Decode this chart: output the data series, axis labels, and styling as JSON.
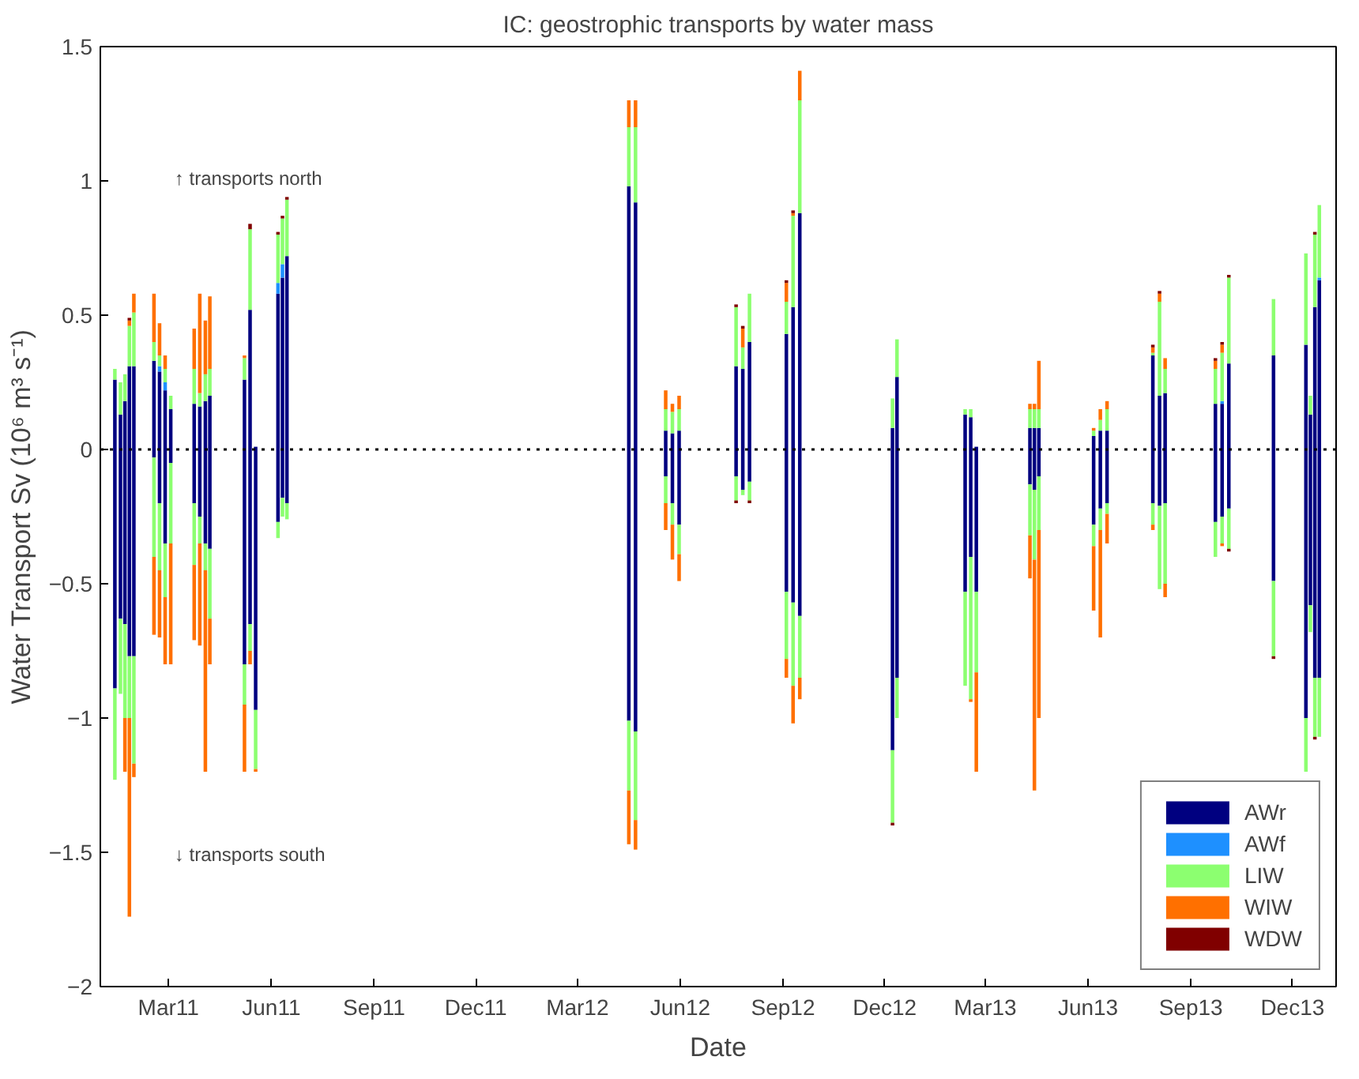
{
  "chart_data": {
    "type": "bar",
    "stacked": true,
    "title": "IC: geostrophic transports by water mass",
    "xlabel": "Date",
    "ylabel": "Water Transport Sv (10⁶ m³ s⁻¹)",
    "annotations": [
      "↑ transports north",
      "↓ transports south"
    ],
    "x": [
      "2011-01-12",
      "2011-01-17",
      "2011-01-21",
      "2011-01-25",
      "2011-01-29",
      "2011-02-16",
      "2011-02-21",
      "2011-02-26",
      "2011-03-03",
      "2011-03-24",
      "2011-03-29",
      "2011-04-03",
      "2011-04-07",
      "2011-05-08",
      "2011-05-13",
      "2011-05-18",
      "2011-06-07",
      "2011-06-11",
      "2011-06-15",
      "2012-04-16",
      "2012-04-22",
      "2012-05-19",
      "2012-05-25",
      "2012-05-31",
      "2012-07-21",
      "2012-07-27",
      "2012-08-02",
      "2012-09-04",
      "2012-09-10",
      "2012-09-16",
      "2012-12-08",
      "2012-12-12",
      "2013-02-11",
      "2013-02-16",
      "2013-02-21",
      "2013-04-10",
      "2013-04-14",
      "2013-04-18",
      "2013-06-06",
      "2013-06-12",
      "2013-06-18",
      "2013-07-29",
      "2013-08-04",
      "2013-08-09",
      "2013-09-23",
      "2013-09-29",
      "2013-10-05",
      "2013-11-14",
      "2013-12-13",
      "2013-12-17",
      "2013-12-21",
      "2013-12-25"
    ],
    "series": [
      {
        "name": "AWr",
        "color": "#000080",
        "values": [
          0.26,
          0.13,
          0.18,
          0.31,
          0.31,
          0.33,
          0.29,
          0.22,
          0.15,
          0.17,
          0.16,
          0.18,
          0.2,
          0.26,
          0.52,
          0.01,
          0.58,
          0.64,
          0.72,
          0.98,
          0.92,
          0.07,
          0.06,
          0.07,
          0.31,
          0.3,
          0.4,
          0.43,
          0.53,
          0.88,
          0.08,
          0.27,
          0.13,
          0.12,
          0.01,
          0.08,
          0.08,
          0.08,
          0.05,
          0.07,
          0.07,
          0.35,
          0.2,
          0.21,
          0.17,
          0.17,
          0.32,
          0.35,
          0.39,
          0.13,
          0.53,
          0.63
        ]
      },
      {
        "name": "AWf",
        "color": "#1e90ff",
        "values": [
          0,
          0,
          0,
          0,
          0,
          0,
          0.02,
          0.03,
          0,
          0,
          0,
          0,
          0,
          0,
          0,
          0,
          0.04,
          0.05,
          0,
          0,
          0,
          0,
          0,
          0,
          0,
          0,
          0,
          0,
          0,
          0,
          0,
          0,
          0,
          0,
          0,
          0,
          0,
          0,
          0,
          0,
          0,
          0,
          0,
          0,
          0,
          0.01,
          0,
          0,
          0,
          0,
          0,
          0.01
        ]
      },
      {
        "name": "LIW",
        "color": "#8cff70",
        "values": [
          0.04,
          0.12,
          0.1,
          0.15,
          0.2,
          0.07,
          0.04,
          0.05,
          0.05,
          0.13,
          0.05,
          0.1,
          0.1,
          0.08,
          0.3,
          0,
          0.18,
          0.17,
          0.21,
          0.22,
          0.28,
          0.08,
          0.08,
          0.08,
          0.22,
          0.08,
          0.18,
          0.12,
          0.34,
          0.42,
          0.11,
          0.14,
          0.02,
          0.03,
          0,
          0.07,
          0.07,
          0.07,
          0.02,
          0.04,
          0.08,
          0.01,
          0.35,
          0.09,
          0.13,
          0.18,
          0.32,
          0.21,
          0.34,
          0.07,
          0.27,
          0.27
        ]
      },
      {
        "name": "WIW",
        "color": "#ff7000",
        "values": [
          0,
          0,
          0,
          0.02,
          0.07,
          0.18,
          0.12,
          0.05,
          0,
          0.15,
          0.37,
          0.2,
          0.27,
          0.01,
          0,
          0,
          0,
          0,
          0,
          0.1,
          0.1,
          0.07,
          0.03,
          0.05,
          0,
          0.07,
          0,
          0.07,
          0.01,
          0.11,
          0,
          0,
          0,
          0,
          0,
          0.02,
          0.02,
          0.18,
          0.01,
          0.04,
          0.03,
          0.02,
          0.03,
          0.04,
          0.03,
          0.03,
          0,
          0,
          0,
          0,
          0,
          0
        ]
      },
      {
        "name": "WDW",
        "color": "#800000",
        "values": [
          0,
          0,
          0,
          0.01,
          0,
          0,
          0,
          0,
          0,
          0,
          0,
          0,
          0,
          0,
          0.02,
          0,
          0.01,
          0.01,
          0.01,
          0,
          0,
          0,
          0,
          0,
          0.01,
          0.01,
          0,
          0.01,
          0.01,
          0,
          0,
          0,
          0,
          0,
          0,
          0,
          0,
          0,
          0,
          0,
          0,
          0.01,
          0.01,
          0,
          0.01,
          0.01,
          0.01,
          0,
          0,
          0,
          0.01,
          0
        ]
      },
      {
        "color": "#000080",
        "values": [
          -0.89,
          -0.63,
          -0.65,
          -0.77,
          -0.77,
          -0.03,
          -0.2,
          -0.35,
          -0.05,
          -0.2,
          -0.25,
          -0.35,
          -0.37,
          -0.8,
          -0.65,
          -0.97,
          -0.27,
          -0.18,
          -0.2,
          -1.01,
          -1.05,
          -0.1,
          -0.2,
          -0.28,
          -0.1,
          -0.15,
          -0.12,
          -0.53,
          -0.57,
          -0.62,
          -1.12,
          -0.85,
          -0.53,
          -0.4,
          -0.53,
          -0.13,
          -0.15,
          -0.1,
          -0.28,
          -0.22,
          -0.2,
          -0.2,
          -0.21,
          -0.2,
          -0.27,
          -0.25,
          -0.22,
          -0.49,
          -1.0,
          -0.58,
          -0.85,
          -0.85
        ]
      },
      {
        "color": "#8cff70",
        "values": [
          -0.34,
          -0.28,
          -0.35,
          -0.23,
          -0.4,
          -0.37,
          -0.25,
          -0.2,
          -0.3,
          -0.23,
          -0.1,
          -0.1,
          -0.26,
          -0.15,
          -0.1,
          -0.22,
          -0.06,
          -0.07,
          -0.06,
          -0.26,
          -0.33,
          -0.1,
          -0.08,
          -0.11,
          -0.09,
          -0.02,
          -0.07,
          -0.25,
          -0.31,
          -0.23,
          -0.27,
          -0.15,
          -0.35,
          -0.53,
          -0.3,
          -0.19,
          -0.26,
          -0.2,
          -0.08,
          -0.08,
          -0.04,
          -0.08,
          -0.31,
          -0.3,
          -0.13,
          -0.1,
          -0.15,
          -0.28,
          -0.2,
          -0.1,
          -0.22,
          -0.22
        ]
      },
      {
        "color": "#ff7000",
        "values": [
          0,
          0,
          -0.2,
          -0.74,
          -0.05,
          -0.29,
          -0.25,
          -0.25,
          -0.45,
          -0.28,
          -0.38,
          -0.75,
          -0.17,
          -0.25,
          -0.05,
          -0.01,
          0,
          0,
          0,
          -0.2,
          -0.11,
          -0.1,
          -0.13,
          -0.1,
          0,
          0,
          0,
          -0.07,
          -0.14,
          -0.08,
          0,
          0,
          0,
          -0.01,
          -0.37,
          -0.16,
          -0.86,
          -0.7,
          -0.24,
          -0.4,
          -0.11,
          -0.02,
          0,
          -0.05,
          0,
          -0.01,
          0,
          0,
          0,
          0,
          0,
          0
        ]
      },
      {
        "color": "#800000",
        "values": [
          0,
          0,
          0,
          0,
          0,
          0,
          0,
          0,
          0,
          0,
          0,
          0,
          0,
          0,
          0,
          0,
          0,
          0,
          0,
          0,
          0,
          0,
          0,
          0,
          -0.01,
          0,
          -0.01,
          0,
          0,
          0,
          -0.01,
          0,
          0,
          0,
          0,
          0,
          0,
          0,
          0,
          0,
          0,
          0,
          0,
          0,
          0,
          0,
          -0.01,
          -0.01,
          0,
          0,
          -0.01,
          0
        ]
      }
    ],
    "xlim": [
      "2010-12-30",
      "2014-01-09"
    ],
    "xticks": [
      {
        "value": "2011-03-01",
        "label": "Mar11"
      },
      {
        "value": "2011-06-01",
        "label": "Jun11"
      },
      {
        "value": "2011-09-01",
        "label": "Sep11"
      },
      {
        "value": "2011-12-01",
        "label": "Dec11"
      },
      {
        "value": "2012-03-01",
        "label": "Mar12"
      },
      {
        "value": "2012-06-01",
        "label": "Jun12"
      },
      {
        "value": "2012-09-01",
        "label": "Sep12"
      },
      {
        "value": "2012-12-01",
        "label": "Dec12"
      },
      {
        "value": "2013-03-01",
        "label": "Mar13"
      },
      {
        "value": "2013-06-01",
        "label": "Jun13"
      },
      {
        "value": "2013-09-01",
        "label": "Sep13"
      },
      {
        "value": "2013-12-01",
        "label": "Dec13"
      }
    ],
    "ylim": [
      -2,
      1.5
    ],
    "yticks": [
      -2,
      -1.5,
      -1,
      -0.5,
      0,
      0.5,
      1,
      1.5
    ],
    "ref_lines": [
      {
        "axis": "y",
        "value": 0,
        "color": "#000000",
        "line_style": "dotted"
      }
    ],
    "legend": "bottom right",
    "grid": false
  }
}
